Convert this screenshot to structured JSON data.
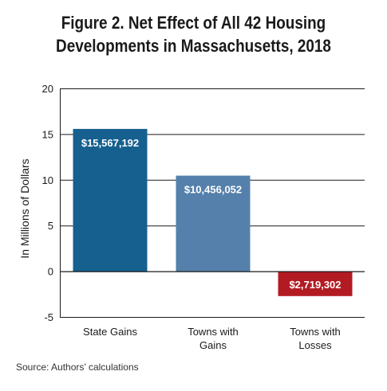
{
  "colors": {
    "state_gains": "#15608f",
    "towns_gains": "#5580ab",
    "towns_losses": "#b31b23",
    "axis": "#1a1a1a",
    "gridline": "#1a1a1a"
  },
  "chart_data": {
    "type": "bar",
    "title_lines": [
      "Figure 2. Net Effect of All 42 Housing",
      "Developments in Massachusetts, 2018"
    ],
    "ylabel": "In Millions of Dollars",
    "xlabel": "",
    "ylim": [
      -5,
      20
    ],
    "yticks": [
      -5,
      0,
      5,
      10,
      15,
      20
    ],
    "grid": true,
    "legend": "none",
    "categories": [
      [
        "State Gains"
      ],
      [
        "Towns with",
        "Gains"
      ],
      [
        "Towns with",
        "Losses"
      ]
    ],
    "values": [
      15.567192,
      10.456052,
      -2.719302
    ],
    "data_labels": [
      "$15,567,192",
      "$10,456,052",
      "$2,719,302"
    ]
  },
  "source": "Source: Authors’ calculations"
}
